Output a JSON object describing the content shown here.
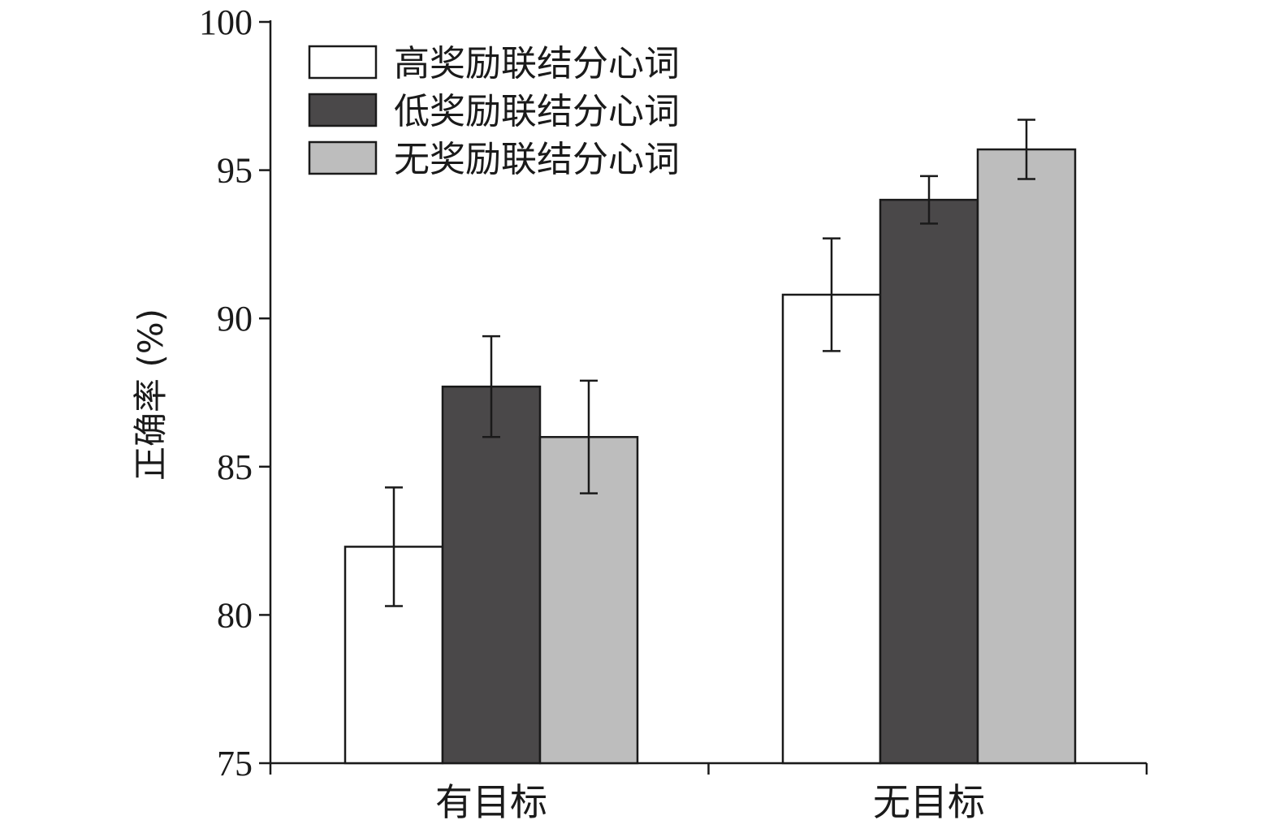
{
  "chart_data": {
    "type": "bar",
    "ylabel": "正确率 (%)",
    "xlabel": "",
    "ylim": [
      75,
      100
    ],
    "yticks": [
      75,
      80,
      85,
      90,
      95,
      100
    ],
    "categories": [
      "有目标",
      "无目标"
    ],
    "series": [
      {
        "name": "高奖励联结分心词",
        "color": "#ffffff",
        "values": [
          82.3,
          90.8
        ],
        "errors": [
          2.0,
          1.9
        ]
      },
      {
        "name": "低奖励联结分心词",
        "color": "#4a4849",
        "values": [
          87.7,
          94.0
        ],
        "errors": [
          1.7,
          0.8
        ]
      },
      {
        "name": "无奖励联结分心词",
        "color": "#bdbdbd",
        "values": [
          86.0,
          95.7
        ],
        "errors": [
          1.9,
          1.0
        ]
      }
    ],
    "legend_position": "top-left",
    "grid": false
  }
}
